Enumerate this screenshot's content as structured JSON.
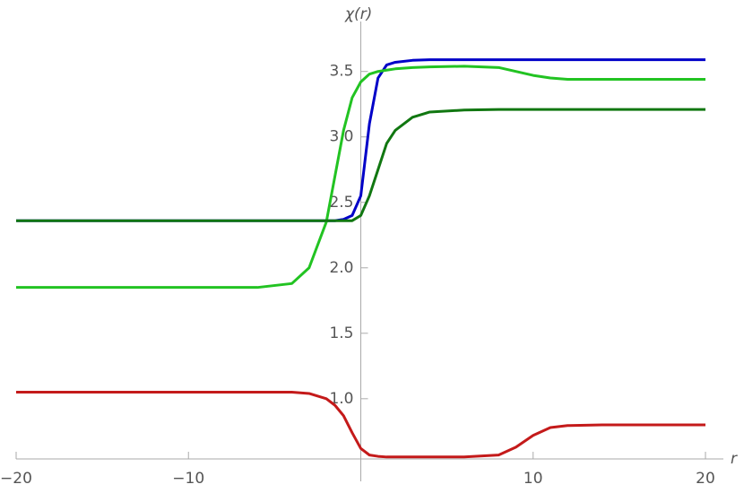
{
  "chart_data": {
    "type": "line",
    "xlabel": "r",
    "ylabel": "χ(r)",
    "x": [
      -20,
      -15,
      -10,
      -6,
      -4,
      -3,
      -2,
      -1.5,
      -1,
      -0.5,
      0,
      0.5,
      1,
      1.5,
      2,
      3,
      4,
      6,
      8,
      9,
      10,
      11,
      12,
      14,
      16,
      20
    ],
    "series": [
      {
        "color": "#0000c8",
        "values": [
          2.36,
          2.36,
          2.36,
          2.36,
          2.36,
          2.36,
          2.36,
          2.36,
          2.37,
          2.4,
          2.55,
          3.1,
          3.45,
          3.55,
          3.57,
          3.585,
          3.59,
          3.59,
          3.59,
          3.59,
          3.59,
          3.59,
          3.59,
          3.59,
          3.59,
          3.59
        ]
      },
      {
        "color": "#22c322",
        "values": [
          1.85,
          1.85,
          1.85,
          1.85,
          1.88,
          2.0,
          2.35,
          2.7,
          3.05,
          3.3,
          3.42,
          3.48,
          3.5,
          3.51,
          3.52,
          3.53,
          3.535,
          3.54,
          3.53,
          3.5,
          3.47,
          3.45,
          3.44,
          3.44,
          3.44,
          3.44
        ]
      },
      {
        "color": "#117711",
        "values": [
          2.36,
          2.36,
          2.36,
          2.36,
          2.36,
          2.36,
          2.36,
          2.36,
          2.36,
          2.36,
          2.4,
          2.55,
          2.75,
          2.95,
          3.05,
          3.15,
          3.19,
          3.205,
          3.21,
          3.21,
          3.21,
          3.21,
          3.21,
          3.21,
          3.21,
          3.21
        ]
      },
      {
        "color": "#c41a1a",
        "values": [
          1.05,
          1.05,
          1.05,
          1.05,
          1.05,
          1.04,
          1.0,
          0.95,
          0.87,
          0.74,
          0.62,
          0.57,
          0.56,
          0.555,
          0.555,
          0.555,
          0.555,
          0.555,
          0.57,
          0.63,
          0.72,
          0.78,
          0.795,
          0.8,
          0.8,
          0.8
        ]
      }
    ],
    "xlim": [
      -20,
      20
    ],
    "xticks": [
      {
        "value": -20,
        "label": "−20"
      },
      {
        "value": -10,
        "label": "−10"
      },
      10,
      20
    ],
    "ylim": [
      0.54,
      3.95
    ],
    "yticks": [
      {
        "value": 1,
        "label": "1.0"
      },
      {
        "value": 1.5,
        "label": "1.5"
      },
      {
        "value": 2,
        "label": "2.0"
      },
      {
        "value": 2.5,
        "label": "2.5"
      },
      {
        "value": 3,
        "label": "3.0"
      },
      {
        "value": 3.5,
        "label": "3.5"
      }
    ],
    "grid": false
  }
}
